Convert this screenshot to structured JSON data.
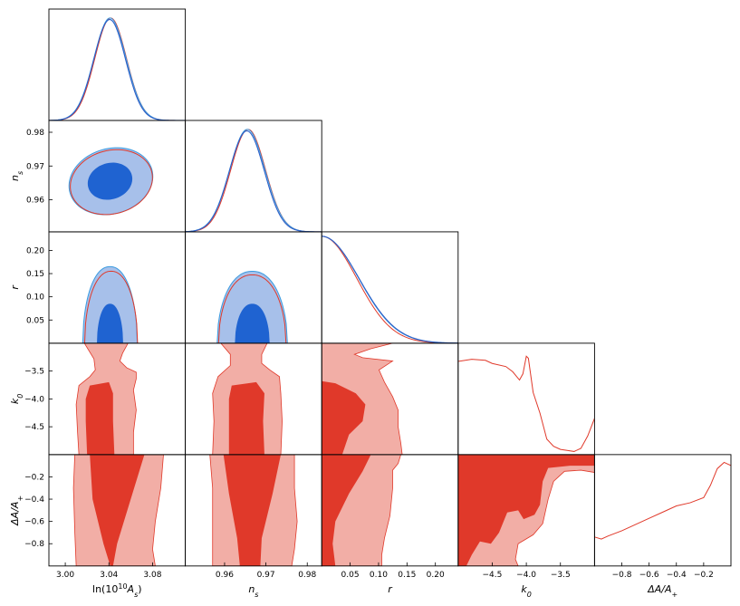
{
  "chart_data": {
    "type": "triangle-corner",
    "colors": {
      "blue_fill_outer": "#a7c0ea",
      "blue_fill_inner": "#1f63d1",
      "blue_line": "#2d5fc7",
      "cyan_line": "#3a9be0",
      "red_line": "#e0392a",
      "red_fill_outer": "#f2aea6",
      "red_fill_inner": "#e0392a"
    },
    "parameters": [
      {
        "name": "lnAs",
        "label": "ln(10",
        "label_sup": "10",
        "label_mid": "A",
        "label_sub": "s",
        "label_end": ")",
        "range": [
          2.985,
          3.11
        ],
        "ticks": [
          "3.00",
          "3.04",
          "3.08"
        ],
        "tick_values": [
          3.0,
          3.04,
          3.08
        ]
      },
      {
        "name": "ns",
        "label": "n",
        "label_sub": "s",
        "range": [
          0.9505,
          0.9835
        ],
        "ticks": [
          "0.96",
          "0.97",
          "0.98"
        ],
        "tick_values": [
          0.96,
          0.97,
          0.98
        ]
      },
      {
        "name": "r",
        "label": "r",
        "range": [
          0.0,
          0.24
        ],
        "ticks": [
          "0.05",
          "0.10",
          "0.15",
          "0.20"
        ],
        "tick_values": [
          0.05,
          0.1,
          0.15,
          0.2
        ]
      },
      {
        "name": "k0",
        "label": "k",
        "label_sub": "0",
        "range": [
          -5.0,
          -3.0
        ],
        "ticks": [
          "−4.5",
          "−4.0",
          "−3.5"
        ],
        "tick_values": [
          -4.5,
          -4.0,
          -3.5
        ]
      },
      {
        "name": "dA",
        "label": "ΔA/A",
        "label_sub": "+",
        "range": [
          -1.0,
          0.0
        ],
        "ticks": [
          "−0.8",
          "−0.6",
          "−0.4",
          "−0.2"
        ],
        "tick_values": [
          -0.8,
          -0.6,
          -0.4,
          -0.2
        ]
      }
    ],
    "marginals": {
      "lnAs": {
        "mean": 3.041,
        "sigma": 0.0145
      },
      "ns": {
        "mean": 0.9655,
        "sigma": 0.0042
      },
      "r": {
        "scale": 0.065
      },
      "k0": {
        "x": [
          -5.0,
          -4.8,
          -4.6,
          -4.5,
          -4.3,
          -4.2,
          -4.1,
          -4.05,
          -4.0,
          -3.97,
          -3.9,
          -3.8,
          -3.7,
          -3.6,
          -3.5,
          -3.4,
          -3.3,
          -3.2,
          -3.1,
          -3.0
        ],
        "y": [
          0.9,
          0.92,
          0.91,
          0.88,
          0.85,
          0.8,
          0.72,
          0.78,
          0.95,
          0.93,
          0.6,
          0.4,
          0.15,
          0.08,
          0.05,
          0.04,
          0.03,
          0.06,
          0.18,
          0.35
        ]
      },
      "dA": {
        "x": [
          -1.0,
          -0.95,
          -0.9,
          -0.8,
          -0.7,
          -0.6,
          -0.5,
          -0.4,
          -0.3,
          -0.2,
          -0.15,
          -0.1,
          -0.05,
          0.0
        ],
        "y": [
          0.28,
          0.26,
          0.29,
          0.34,
          0.4,
          0.46,
          0.52,
          0.58,
          0.61,
          0.66,
          0.78,
          0.94,
          1.0,
          0.97
        ]
      }
    },
    "contours_blue": {
      "ns_vs_lnAs": {
        "corr": 0.4
      },
      "r_vs_lnAs": {
        "center": 3.041,
        "half_width_68": 0.012,
        "half_width_95": 0.025,
        "top_68": 0.085,
        "top_95": 0.165
      },
      "r_vs_ns": {
        "center": 0.9655,
        "half_width_68": 0.0042,
        "half_width_95": 0.0085,
        "top_68": 0.085,
        "top_95": 0.155
      }
    }
  }
}
